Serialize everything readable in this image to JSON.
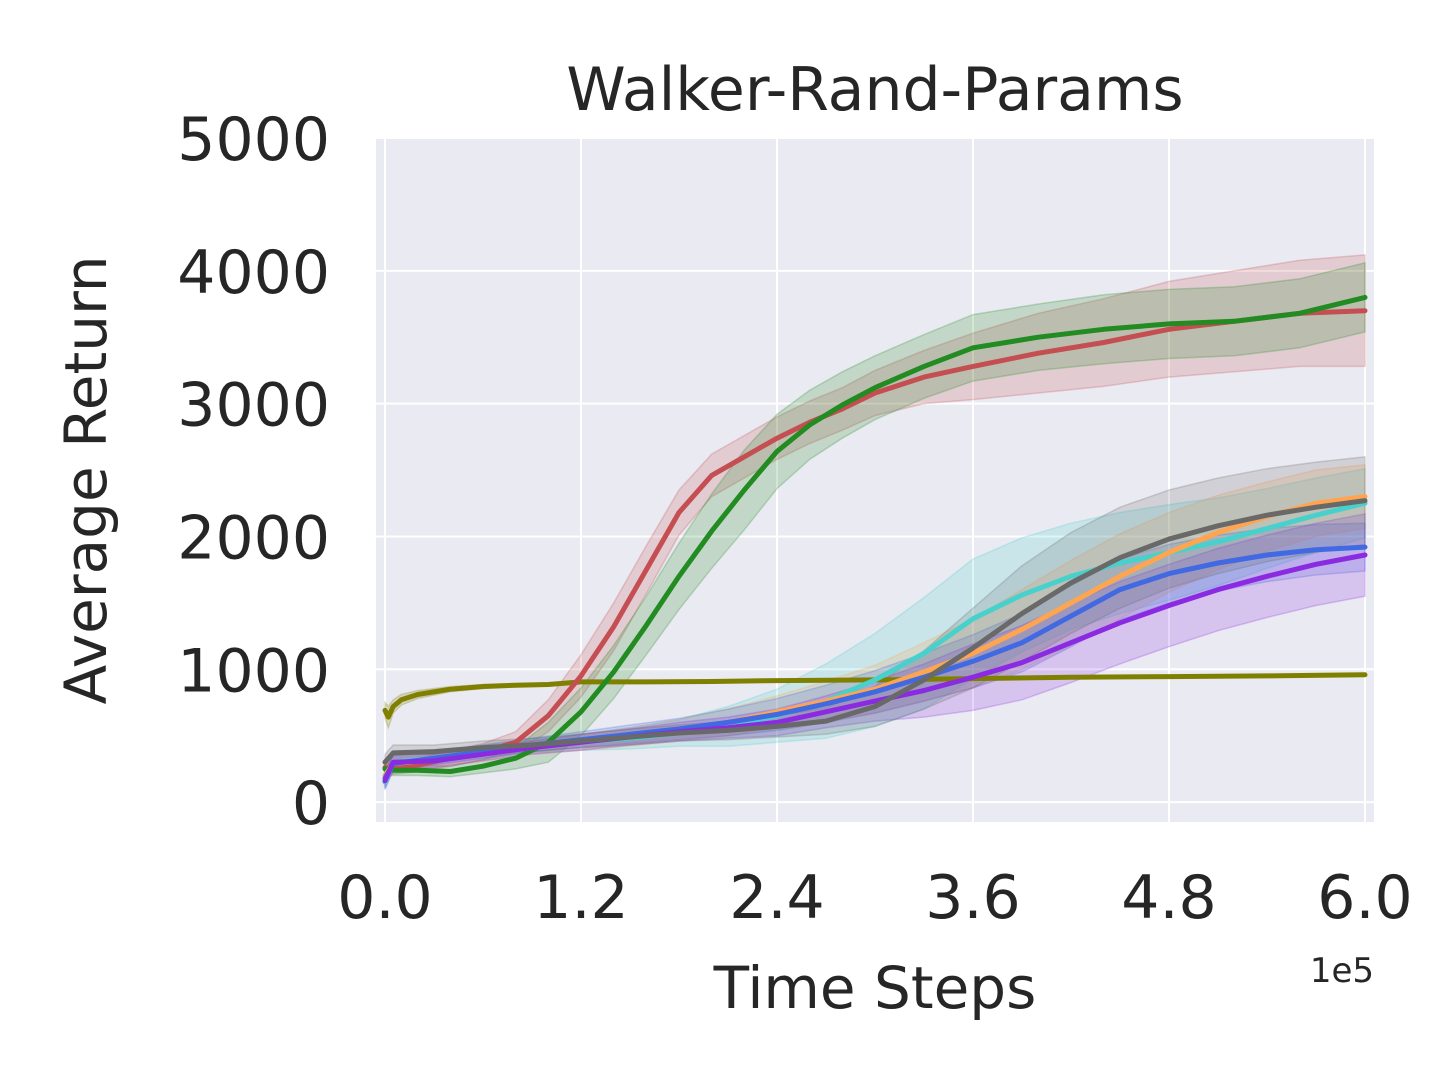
{
  "chart_data": {
    "type": "line",
    "title": "Walker-Rand-Params",
    "xlabel": "Time Steps",
    "ylabel": "Average Return",
    "x_offset_label": "1e5",
    "xlim": [
      -0.055,
      6.055
    ],
    "ylim": [
      -150,
      5000
    ],
    "x_ticks": [
      0.0,
      1.2,
      2.4,
      3.6,
      4.8,
      6.0
    ],
    "x_tick_labels": [
      "0.0",
      "1.2",
      "2.4",
      "3.6",
      "4.8",
      "6.0"
    ],
    "y_ticks": [
      0,
      1000,
      2000,
      3000,
      4000,
      5000
    ],
    "y_tick_labels": [
      "0",
      "1000",
      "2000",
      "3000",
      "4000",
      "5000"
    ],
    "grid": true,
    "background_color": "#eaeaf2",
    "series": [
      {
        "color": "#808000",
        "x": [
          0,
          0.02,
          0.05,
          0.1,
          0.2,
          0.4,
          0.6,
          0.8,
          1.0,
          1.2,
          1.6,
          2.0,
          2.4,
          3.0,
          3.6,
          4.2,
          4.8,
          5.4,
          6.0
        ],
        "y": [
          690,
          640,
          720,
          770,
          810,
          850,
          870,
          880,
          885,
          905,
          905,
          908,
          915,
          920,
          930,
          940,
          945,
          950,
          958
        ],
        "band": [
          60,
          80,
          50,
          40,
          30,
          20,
          15,
          12,
          12,
          10,
          10,
          10,
          10,
          10,
          10,
          10,
          10,
          10,
          10
        ]
      },
      {
        "color": "#c44e52",
        "x": [
          0,
          0.05,
          0.2,
          0.4,
          0.6,
          0.8,
          1.0,
          1.2,
          1.4,
          1.6,
          1.8,
          2.0,
          2.2,
          2.4,
          2.6,
          2.8,
          3.0,
          3.3,
          3.6,
          4.0,
          4.4,
          4.8,
          5.2,
          5.6,
          6.0
        ],
        "y": [
          260,
          250,
          280,
          330,
          380,
          450,
          650,
          950,
          1320,
          1750,
          2180,
          2460,
          2600,
          2740,
          2860,
          2960,
          3080,
          3200,
          3280,
          3380,
          3460,
          3560,
          3620,
          3680,
          3700
        ],
        "band": [
          40,
          40,
          50,
          60,
          60,
          80,
          120,
          160,
          180,
          180,
          170,
          160,
          160,
          160,
          160,
          160,
          170,
          200,
          250,
          300,
          330,
          360,
          380,
          400,
          420
        ]
      },
      {
        "color": "#228b22",
        "x": [
          0,
          0.05,
          0.2,
          0.4,
          0.6,
          0.8,
          1.0,
          1.2,
          1.4,
          1.6,
          1.8,
          2.0,
          2.2,
          2.4,
          2.6,
          2.8,
          3.0,
          3.3,
          3.6,
          4.0,
          4.4,
          4.8,
          5.2,
          5.6,
          6.0
        ],
        "y": [
          250,
          240,
          240,
          230,
          270,
          330,
          450,
          680,
          980,
          1330,
          1700,
          2040,
          2350,
          2640,
          2840,
          2990,
          3120,
          3280,
          3420,
          3500,
          3560,
          3600,
          3620,
          3680,
          3800
        ],
        "band": [
          40,
          40,
          40,
          40,
          50,
          80,
          150,
          180,
          200,
          220,
          250,
          280,
          300,
          280,
          260,
          250,
          240,
          240,
          250,
          250,
          260,
          260,
          260,
          260,
          260
        ]
      },
      {
        "color": "#48d1cc",
        "x": [
          0,
          0.05,
          0.3,
          0.6,
          0.9,
          1.2,
          1.5,
          1.8,
          2.1,
          2.4,
          2.7,
          3.0,
          3.3,
          3.6,
          3.9,
          4.2,
          4.5,
          4.8,
          5.1,
          5.4,
          5.7,
          6.0
        ],
        "y": [
          150,
          300,
          330,
          380,
          420,
          450,
          480,
          520,
          570,
          650,
          760,
          920,
          1120,
          1380,
          1560,
          1700,
          1800,
          1880,
          1960,
          2060,
          2160,
          2250
        ],
        "band": [
          60,
          60,
          50,
          50,
          50,
          60,
          80,
          100,
          150,
          200,
          280,
          350,
          420,
          450,
          430,
          400,
          380,
          360,
          330,
          300,
          280,
          260
        ]
      },
      {
        "color": "#ffa54f",
        "x": [
          0,
          0.05,
          0.3,
          0.6,
          0.9,
          1.2,
          1.5,
          1.8,
          2.1,
          2.4,
          2.7,
          3.0,
          3.3,
          3.6,
          3.9,
          4.2,
          4.5,
          4.8,
          5.1,
          5.4,
          5.7,
          6.0
        ],
        "y": [
          200,
          290,
          320,
          360,
          410,
          450,
          490,
          540,
          600,
          680,
          760,
          850,
          980,
          1120,
          1300,
          1500,
          1700,
          1880,
          2030,
          2150,
          2250,
          2300
        ],
        "band": [
          60,
          60,
          50,
          50,
          50,
          60,
          70,
          80,
          100,
          120,
          150,
          180,
          220,
          260,
          300,
          320,
          320,
          300,
          280,
          260,
          250,
          240
        ]
      },
      {
        "color": "#4169e1",
        "x": [
          0,
          0.05,
          0.3,
          0.6,
          0.9,
          1.2,
          1.5,
          1.8,
          2.1,
          2.4,
          2.7,
          3.0,
          3.3,
          3.6,
          3.9,
          4.2,
          4.5,
          4.8,
          5.1,
          5.4,
          5.7,
          6.0
        ],
        "y": [
          180,
          290,
          330,
          380,
          430,
          470,
          510,
          550,
          600,
          660,
          740,
          830,
          940,
          1060,
          1200,
          1400,
          1600,
          1720,
          1800,
          1860,
          1900,
          1920
        ],
        "band": [
          60,
          60,
          50,
          50,
          50,
          60,
          70,
          80,
          100,
          120,
          140,
          160,
          180,
          200,
          220,
          230,
          230,
          220,
          210,
          200,
          190,
          180
        ]
      },
      {
        "color": "#8a2be2",
        "x": [
          0,
          0.05,
          0.3,
          0.6,
          0.9,
          1.2,
          1.5,
          1.8,
          2.1,
          2.4,
          2.7,
          3.0,
          3.3,
          3.6,
          3.9,
          4.2,
          4.5,
          4.8,
          5.1,
          5.4,
          5.7,
          6.0
        ],
        "y": [
          160,
          300,
          310,
          360,
          410,
          450,
          490,
          530,
          560,
          600,
          680,
          760,
          840,
          940,
          1050,
          1200,
          1350,
          1480,
          1600,
          1700,
          1790,
          1860
        ],
        "band": [
          60,
          60,
          50,
          50,
          50,
          60,
          60,
          70,
          80,
          100,
          120,
          150,
          200,
          250,
          280,
          300,
          310,
          310,
          310,
          310,
          310,
          310
        ]
      },
      {
        "color": "#696969",
        "x": [
          0,
          0.05,
          0.3,
          0.6,
          0.9,
          1.2,
          1.5,
          1.8,
          2.1,
          2.4,
          2.7,
          3.0,
          3.3,
          3.6,
          3.9,
          4.2,
          4.5,
          4.8,
          5.1,
          5.4,
          5.7,
          6.0
        ],
        "y": [
          300,
          370,
          380,
          410,
          430,
          460,
          490,
          520,
          540,
          570,
          610,
          720,
          920,
          1160,
          1420,
          1650,
          1840,
          1980,
          2080,
          2160,
          2220,
          2270
        ],
        "band": [
          60,
          60,
          50,
          50,
          50,
          50,
          60,
          60,
          70,
          80,
          100,
          150,
          220,
          300,
          360,
          380,
          380,
          370,
          360,
          350,
          340,
          330
        ]
      }
    ]
  }
}
